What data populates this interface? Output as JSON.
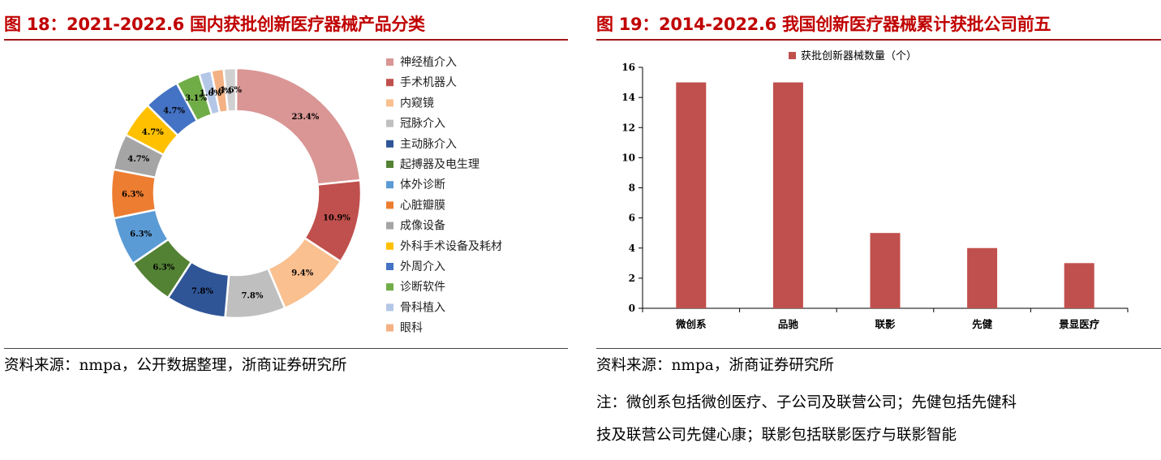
{
  "left": {
    "title": "图 18：2021-2022.6 国内获批创新医疗器械产品分类",
    "source": "资料来源：nmpa，公开数据整理，浙商证券研究所"
  },
  "right": {
    "title": "图 19：2014-2022.6 我国创新医疗器械累计获批公司前五",
    "source": "资料来源：nmpa，浙商证券研究所",
    "note_line1": "注：微创系包括微创医疗、子公司及联营公司；先健包括先健科",
    "note_line2": "技及联营公司先健心康；联影包括联影医疗与联影智能"
  },
  "chart_data": [
    {
      "type": "pie",
      "donut": true,
      "legend_position": "right",
      "slices": [
        {
          "label": "神经植介入",
          "value": 23.4,
          "display": "23.4%",
          "color": "#d99694"
        },
        {
          "label": "手术机器人",
          "value": 10.9,
          "display": "10.9%",
          "color": "#c0504d"
        },
        {
          "label": "内窥镜",
          "value": 9.4,
          "display": "9.4%",
          "color": "#fac090"
        },
        {
          "label": "冠脉介入",
          "value": 7.8,
          "display": "7.8%",
          "color": "#bfbfbf"
        },
        {
          "label": "主动脉介入",
          "value": 7.8,
          "display": "7.8%",
          "color": "#2f5597"
        },
        {
          "label": "起搏器及电生理",
          "value": 6.3,
          "display": "6.3%",
          "color": "#548235"
        },
        {
          "label": "体外诊断",
          "value": 6.3,
          "display": "6.3%",
          "color": "#5b9bd5"
        },
        {
          "label": "心脏瓣膜",
          "value": 6.3,
          "display": "6.3%",
          "color": "#ed7d31"
        },
        {
          "label": "成像设备",
          "value": 4.7,
          "display": "4.7%",
          "color": "#a5a5a5"
        },
        {
          "label": "外科手术设备及耗材",
          "value": 4.7,
          "display": "4.7%",
          "color": "#ffc000"
        },
        {
          "label": "外周介入",
          "value": 4.7,
          "display": "4.7%",
          "color": "#4472c4"
        },
        {
          "label": "诊断软件",
          "value": 3.1,
          "display": "3.1%",
          "color": "#70ad47"
        },
        {
          "label": "骨科植入",
          "value": 1.6,
          "display": "1.6%",
          "color": "#b4c7e7"
        },
        {
          "label": "眼科",
          "value": 1.6,
          "display": "1.6%",
          "color": "#f4b183"
        },
        {
          "label": "",
          "value": 1.6,
          "display": "1.6%",
          "color": "#d0d0d0"
        }
      ]
    },
    {
      "type": "bar",
      "legend_position": "top",
      "categories": [
        "微创系",
        "品驰",
        "联影",
        "先健",
        "景显医疗"
      ],
      "series": [
        {
          "name": "获批创新器械数量（个）",
          "values": [
            15,
            15,
            5,
            4,
            3
          ],
          "color": "#c0504d"
        }
      ],
      "ylim": [
        0,
        16
      ],
      "yticks": [
        0,
        2,
        4,
        6,
        8,
        10,
        12,
        14,
        16
      ],
      "grid": false
    }
  ]
}
